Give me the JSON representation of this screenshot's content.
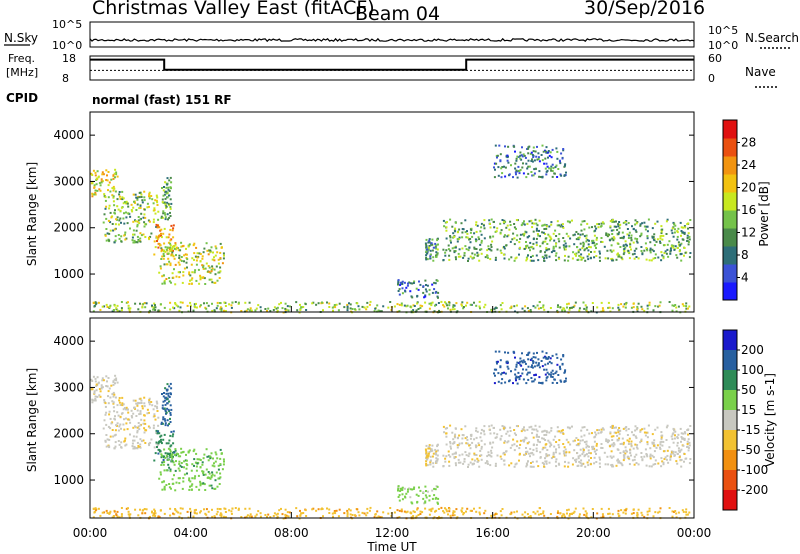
{
  "header": {
    "radar": "Christmas Valley East (fitACF)",
    "beam": "Beam 04",
    "date": "30/Sep/2016",
    "cpid_label": "CPID",
    "cpid": "normal (fast) 151 RF"
  },
  "chart_data": [
    {
      "type": "line",
      "title": "",
      "left_label": "N.Sky",
      "right_label": "N.Search",
      "left_ticks": [
        "10^5",
        "10^0"
      ],
      "right_ticks": [
        "10^5",
        "10^0"
      ],
      "right_legend_style": "dotted"
    },
    {
      "type": "line",
      "left_label_lines": [
        "Freq.",
        "[MHz]"
      ],
      "right_label": "Nave",
      "left_ticks": [
        "18",
        "8"
      ],
      "right_ticks": [
        "60",
        "0"
      ],
      "right_legend_style": "dotted",
      "freq_steps": [
        {
          "start_hour": 0.0,
          "end_hour": 2.95,
          "freq": 16.5
        },
        {
          "start_hour": 2.95,
          "end_hour": 14.95,
          "freq": 12.3
        },
        {
          "start_hour": 14.95,
          "end_hour": 24.0,
          "freq": 16.5
        }
      ],
      "nave": 24
    },
    {
      "type": "heatmap",
      "ylabel": "Slant Range [km]",
      "xlabel": "",
      "yticks": [
        "1000",
        "2000",
        "3000",
        "4000"
      ],
      "ylim": [
        180,
        4500
      ],
      "xlim": [
        0,
        24
      ],
      "colorbar_label": "Power [dB]",
      "colorbar_ticks": [
        "4",
        "8",
        "12",
        "16",
        "20",
        "24",
        "28"
      ],
      "colorbar_range": [
        0,
        30
      ],
      "colorbar_colors": [
        "#1a1aff",
        "#3b52d6",
        "#2e6e78",
        "#4a8a4a",
        "#74c24a",
        "#c8e820",
        "#f2c210",
        "#f29410",
        "#ea5010",
        "#e01010"
      ]
    },
    {
      "type": "heatmap",
      "ylabel": "Slant Range [km]",
      "xlabel": "Time UT",
      "yticks": [
        "1000",
        "2000",
        "3000",
        "4000"
      ],
      "ylim": [
        180,
        4500
      ],
      "xlim": [
        0,
        24
      ],
      "xticks": [
        "00:00",
        "04:00",
        "08:00",
        "12:00",
        "16:00",
        "20:00",
        "00:00"
      ],
      "colorbar_label": "Velocity [m s-1]",
      "colorbar_ticks": [
        "200",
        "100",
        "50",
        "15",
        "-15",
        "-50",
        "-100",
        "-200"
      ],
      "colorbar_colors": [
        "#1a1acc",
        "#2860a0",
        "#2e8b57",
        "#7ad04a",
        "#c8c8c0",
        "#f2c232",
        "#f29010",
        "#ea5010",
        "#e01010"
      ]
    }
  ],
  "echo_regions": [
    {
      "panel": "both",
      "t0": 0.0,
      "t1": 1.1,
      "r0": 2700,
      "r1": 3300,
      "power": 18,
      "vel": -5
    },
    {
      "panel": "both",
      "t0": 0.5,
      "t1": 2.7,
      "r0": 1700,
      "r1": 2800,
      "power": 14,
      "vel": -8
    },
    {
      "panel": "both",
      "t0": 2.5,
      "t1": 3.4,
      "r0": 1400,
      "r1": 2100,
      "power": 20,
      "vel": 90
    },
    {
      "panel": "both",
      "t0": 2.7,
      "t1": 5.3,
      "r0": 800,
      "r1": 1700,
      "power": 16,
      "vel": 40
    },
    {
      "panel": "both",
      "t0": 2.8,
      "t1": 3.2,
      "r0": 2200,
      "r1": 3100,
      "power": 12,
      "vel": 110
    },
    {
      "panel": "both",
      "t0": 12.2,
      "t1": 13.8,
      "r0": 500,
      "r1": 900,
      "power": 8,
      "vel": 25
    },
    {
      "panel": "both",
      "t0": 13.3,
      "t1": 13.8,
      "r0": 1300,
      "r1": 1800,
      "power": 10,
      "vel": -10
    },
    {
      "panel": "both",
      "t0": 14.0,
      "t1": 23.9,
      "r0": 1300,
      "r1": 2200,
      "power": 12,
      "vel": -6
    },
    {
      "panel": "both",
      "t0": 16.0,
      "t1": 18.9,
      "r0": 3100,
      "r1": 3800,
      "power": 8,
      "vel": 190
    },
    {
      "panel": "both",
      "t0": 0.1,
      "t1": 23.8,
      "r0": 190,
      "r1": 420,
      "power": 14,
      "vel": -40
    }
  ]
}
